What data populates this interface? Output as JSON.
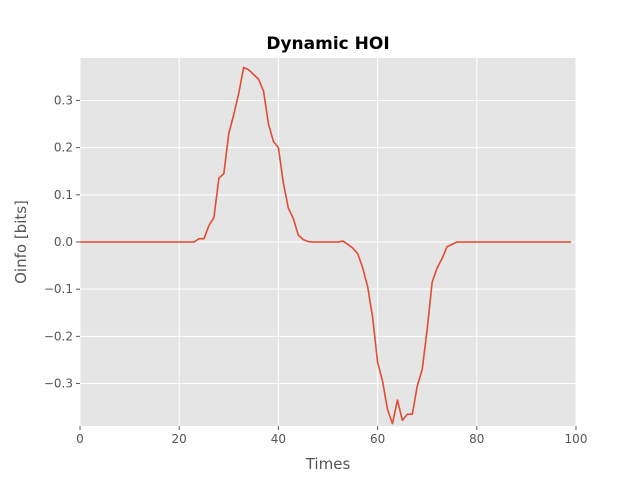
{
  "chart_data": {
    "type": "line",
    "title": "Dynamic HOI",
    "xlabel": "Times",
    "ylabel": "Oinfo [bits]",
    "xlim": [
      0,
      100
    ],
    "ylim": [
      -0.39,
      0.39
    ],
    "xticks": [
      0,
      20,
      40,
      60,
      80,
      100
    ],
    "yticks": [
      -0.3,
      -0.2,
      -0.1,
      0.0,
      0.1,
      0.2,
      0.3
    ],
    "xtick_labels": [
      "0",
      "20",
      "40",
      "60",
      "80",
      "100"
    ],
    "ytick_labels": [
      "−0.3",
      "−0.2",
      "−0.1",
      "0.0",
      "0.1",
      "0.2",
      "0.3"
    ],
    "grid": true,
    "line_color": "#e24a33",
    "background_color": "#e5e5e5",
    "x": [
      0,
      1,
      2,
      3,
      4,
      5,
      6,
      7,
      8,
      9,
      10,
      11,
      12,
      13,
      14,
      15,
      16,
      17,
      18,
      19,
      20,
      21,
      22,
      23,
      24,
      25,
      26,
      27,
      28,
      29,
      30,
      31,
      32,
      33,
      34,
      35,
      36,
      37,
      38,
      39,
      40,
      41,
      42,
      43,
      44,
      45,
      46,
      47,
      48,
      49,
      50,
      51,
      52,
      53,
      54,
      55,
      56,
      57,
      58,
      59,
      60,
      61,
      62,
      63,
      64,
      65,
      66,
      67,
      68,
      69,
      70,
      71,
      72,
      73,
      74,
      75,
      76,
      77,
      78,
      79,
      80,
      81,
      82,
      83,
      84,
      85,
      86,
      87,
      88,
      89,
      90,
      91,
      92,
      93,
      94,
      95,
      96,
      97,
      98,
      99
    ],
    "y": [
      0,
      0,
      0,
      0,
      0,
      0,
      0,
      0,
      0,
      0,
      0,
      0,
      0,
      0,
      0,
      0,
      0,
      0,
      0,
      0,
      0,
      0,
      0,
      0,
      0.007,
      0.007,
      0.035,
      0.052,
      0.135,
      0.145,
      0.23,
      0.27,
      0.315,
      0.37,
      0.365,
      0.355,
      0.345,
      0.32,
      0.25,
      0.213,
      0.2,
      0.125,
      0.072,
      0.05,
      0.015,
      0.005,
      0.001,
      0,
      0,
      0,
      0,
      0,
      0,
      0.002,
      -0.005,
      -0.013,
      -0.025,
      -0.055,
      -0.095,
      -0.16,
      -0.255,
      -0.295,
      -0.355,
      -0.385,
      -0.335,
      -0.378,
      -0.365,
      -0.365,
      -0.305,
      -0.27,
      -0.185,
      -0.085,
      -0.055,
      -0.035,
      -0.01,
      -0.005,
      0,
      0,
      0,
      0,
      0,
      0,
      0,
      0,
      0,
      0,
      0,
      0,
      0,
      0,
      0,
      0,
      0,
      0,
      0,
      0,
      0,
      0,
      0,
      0
    ]
  }
}
